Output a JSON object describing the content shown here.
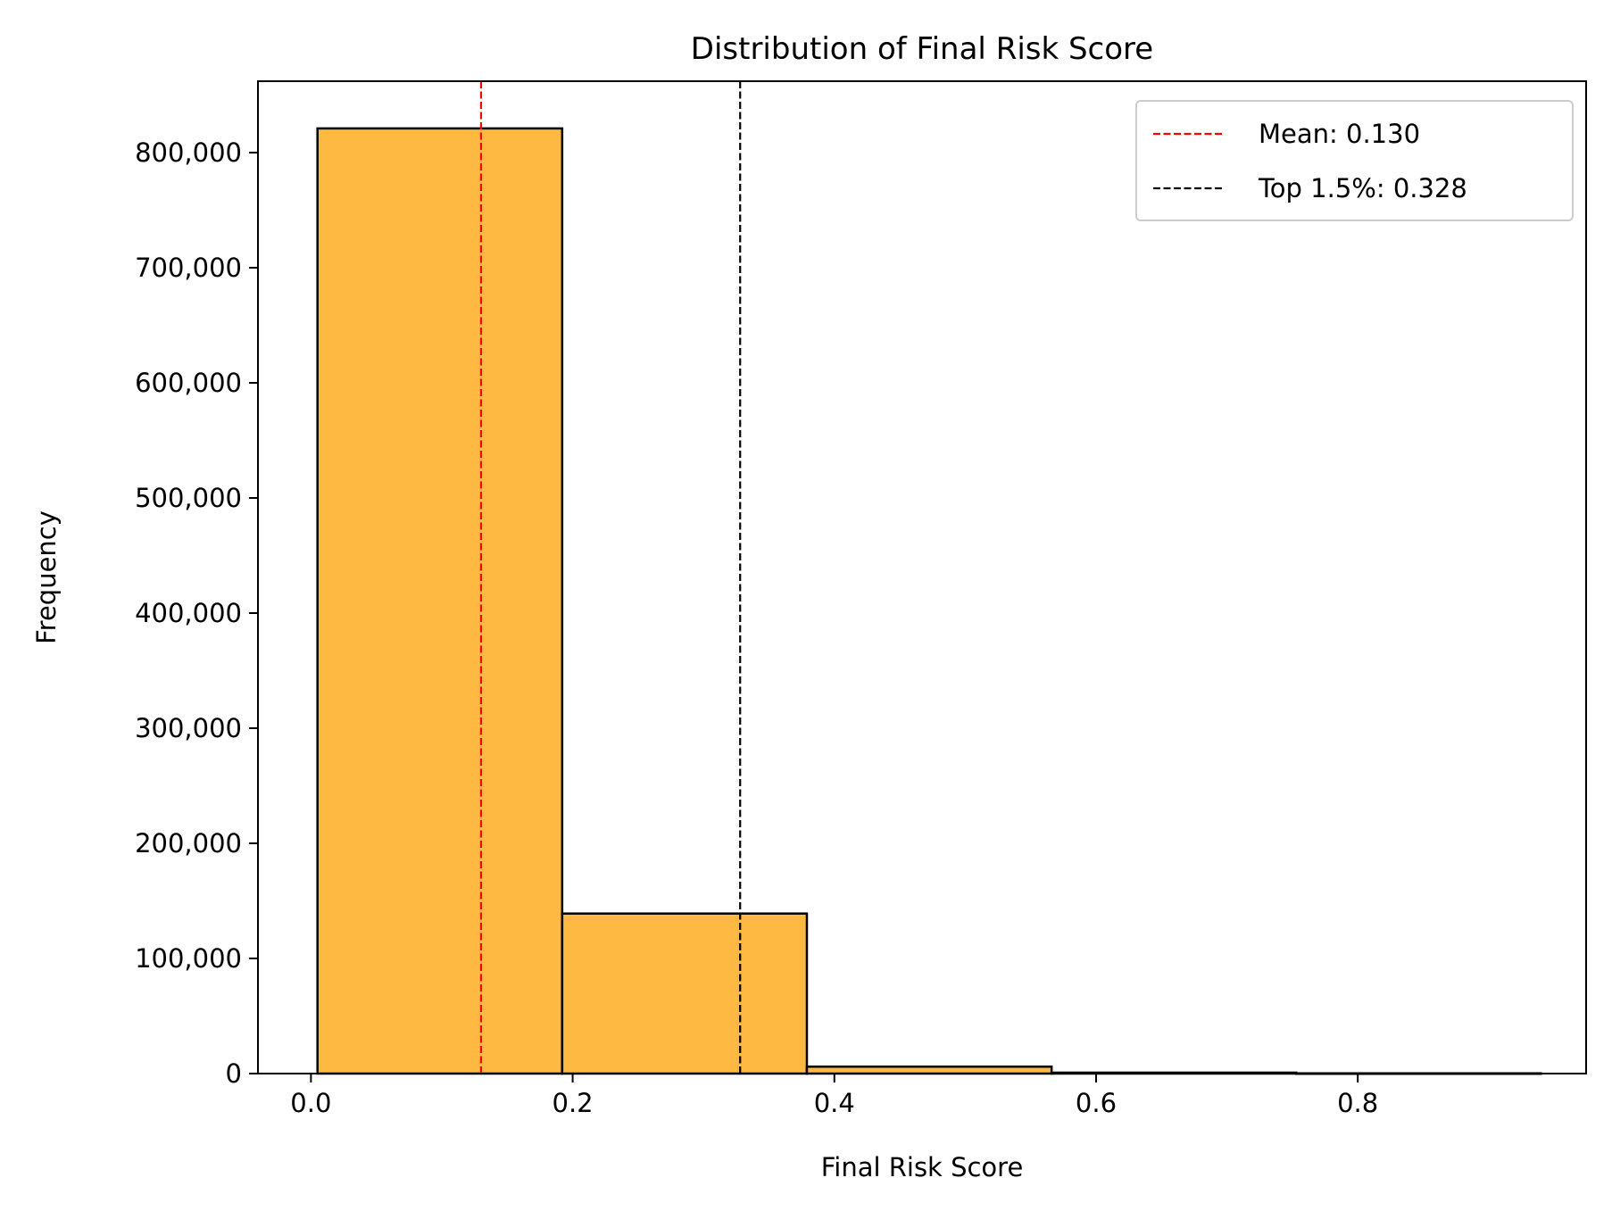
{
  "chart_data": {
    "type": "bar",
    "title": "Distribution of Final Risk Score",
    "xlabel": "Final Risk Score",
    "ylabel": "Frequency",
    "xlim": [
      -0.0405,
      0.9745
    ],
    "ylim": [
      0,
      862000
    ],
    "xticks": [
      0.0,
      0.2,
      0.4,
      0.6,
      0.8
    ],
    "xtick_labels": [
      "0.0",
      "0.2",
      "0.4",
      "0.6",
      "0.8"
    ],
    "yticks": [
      0,
      100000,
      200000,
      300000,
      400000,
      500000,
      600000,
      700000,
      800000
    ],
    "ytick_labels": [
      "0",
      "100,000",
      "200,000",
      "300,000",
      "400,000",
      "500,000",
      "600,000",
      "700,000",
      "800,000"
    ],
    "bins": [
      {
        "x0": 0.005,
        "x1": 0.192,
        "count": 821000
      },
      {
        "x0": 0.192,
        "x1": 0.379,
        "count": 139000
      },
      {
        "x0": 0.379,
        "x1": 0.566,
        "count": 6000
      },
      {
        "x0": 0.566,
        "x1": 0.753,
        "count": 800
      },
      {
        "x0": 0.753,
        "x1": 0.94,
        "count": 200
      }
    ],
    "bar_color": "#fdb941",
    "bar_edge_color": "#000000",
    "reference_lines": [
      {
        "label": "Mean: 0.130",
        "x": 0.13,
        "color": "#ff0000",
        "style": "dashed"
      },
      {
        "label": "Top 1.5%: 0.328",
        "x": 0.328,
        "color": "#000000",
        "style": "dashed"
      }
    ],
    "legend_position": "top-right",
    "grid": false
  }
}
